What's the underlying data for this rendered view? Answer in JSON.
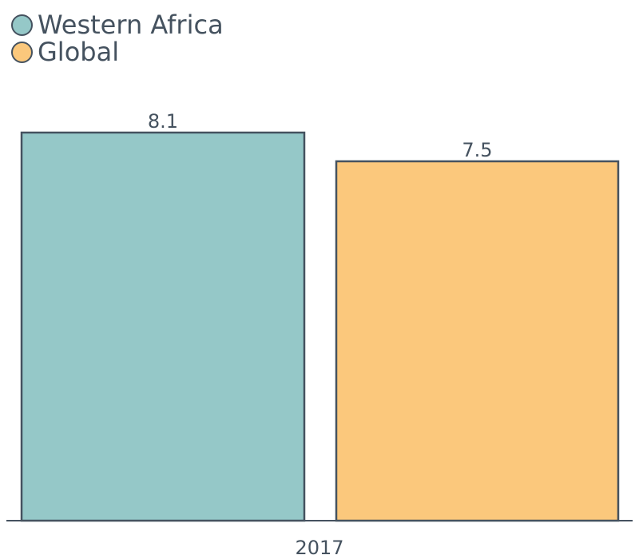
{
  "chart_data": {
    "type": "bar",
    "categories": [
      "2017"
    ],
    "series": [
      {
        "name": "Western Africa",
        "values": [
          8.1
        ],
        "color": "#95c8c8"
      },
      {
        "name": "Global",
        "values": [
          7.5
        ],
        "color": "#fbc87c"
      }
    ],
    "data_labels": [
      "8.1",
      "7.5"
    ],
    "title": "",
    "xlabel": "",
    "ylabel": "",
    "ylim": [
      0,
      8.1
    ],
    "legend_position": "top-left",
    "grid": false,
    "stroke_color": "#45525f",
    "text_color": "#45525f"
  }
}
